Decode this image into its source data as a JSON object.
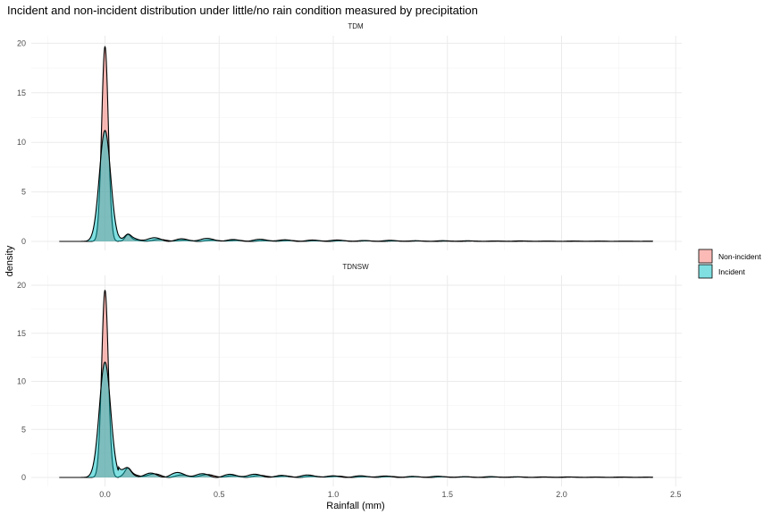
{
  "chart_data": {
    "type": "area",
    "title": "Incident and non-incident distribution under little/no rain condition measured by precipitation",
    "xlabel": "Rainfall (mm)",
    "ylabel": "density",
    "xlim": [
      -0.2,
      2.4
    ],
    "ylim": [
      0,
      20
    ],
    "x_ticks": [
      0.0,
      0.5,
      1.0,
      1.5,
      2.0,
      2.5
    ],
    "x_tick_labels": [
      "0.0",
      "0.5",
      "1.0",
      "1.5",
      "2.0",
      "2.5"
    ],
    "y_ticks": [
      0,
      5,
      10,
      15,
      20
    ],
    "y_tick_labels": [
      "0",
      "5",
      "10",
      "15",
      "20"
    ],
    "grid": true,
    "legend": {
      "placement": "right",
      "entries": [
        {
          "name": "Non-incident",
          "color": "#F8766D"
        },
        {
          "name": "Incident",
          "color": "#00BFC4"
        }
      ]
    },
    "panels": [
      {
        "strip": "TDM",
        "series": [
          {
            "name": "Non-incident",
            "peak_x": 0.0,
            "peak_y": 19.7
          },
          {
            "name": "Incident",
            "peak_x": 0.0,
            "peak_y": 11.2
          }
        ]
      },
      {
        "strip": "TDNSW",
        "series": [
          {
            "name": "Non-incident",
            "peak_x": 0.0,
            "peak_y": 19.5
          },
          {
            "name": "Incident",
            "peak_x": 0.0,
            "peak_y": 12.0
          }
        ]
      }
    ]
  }
}
